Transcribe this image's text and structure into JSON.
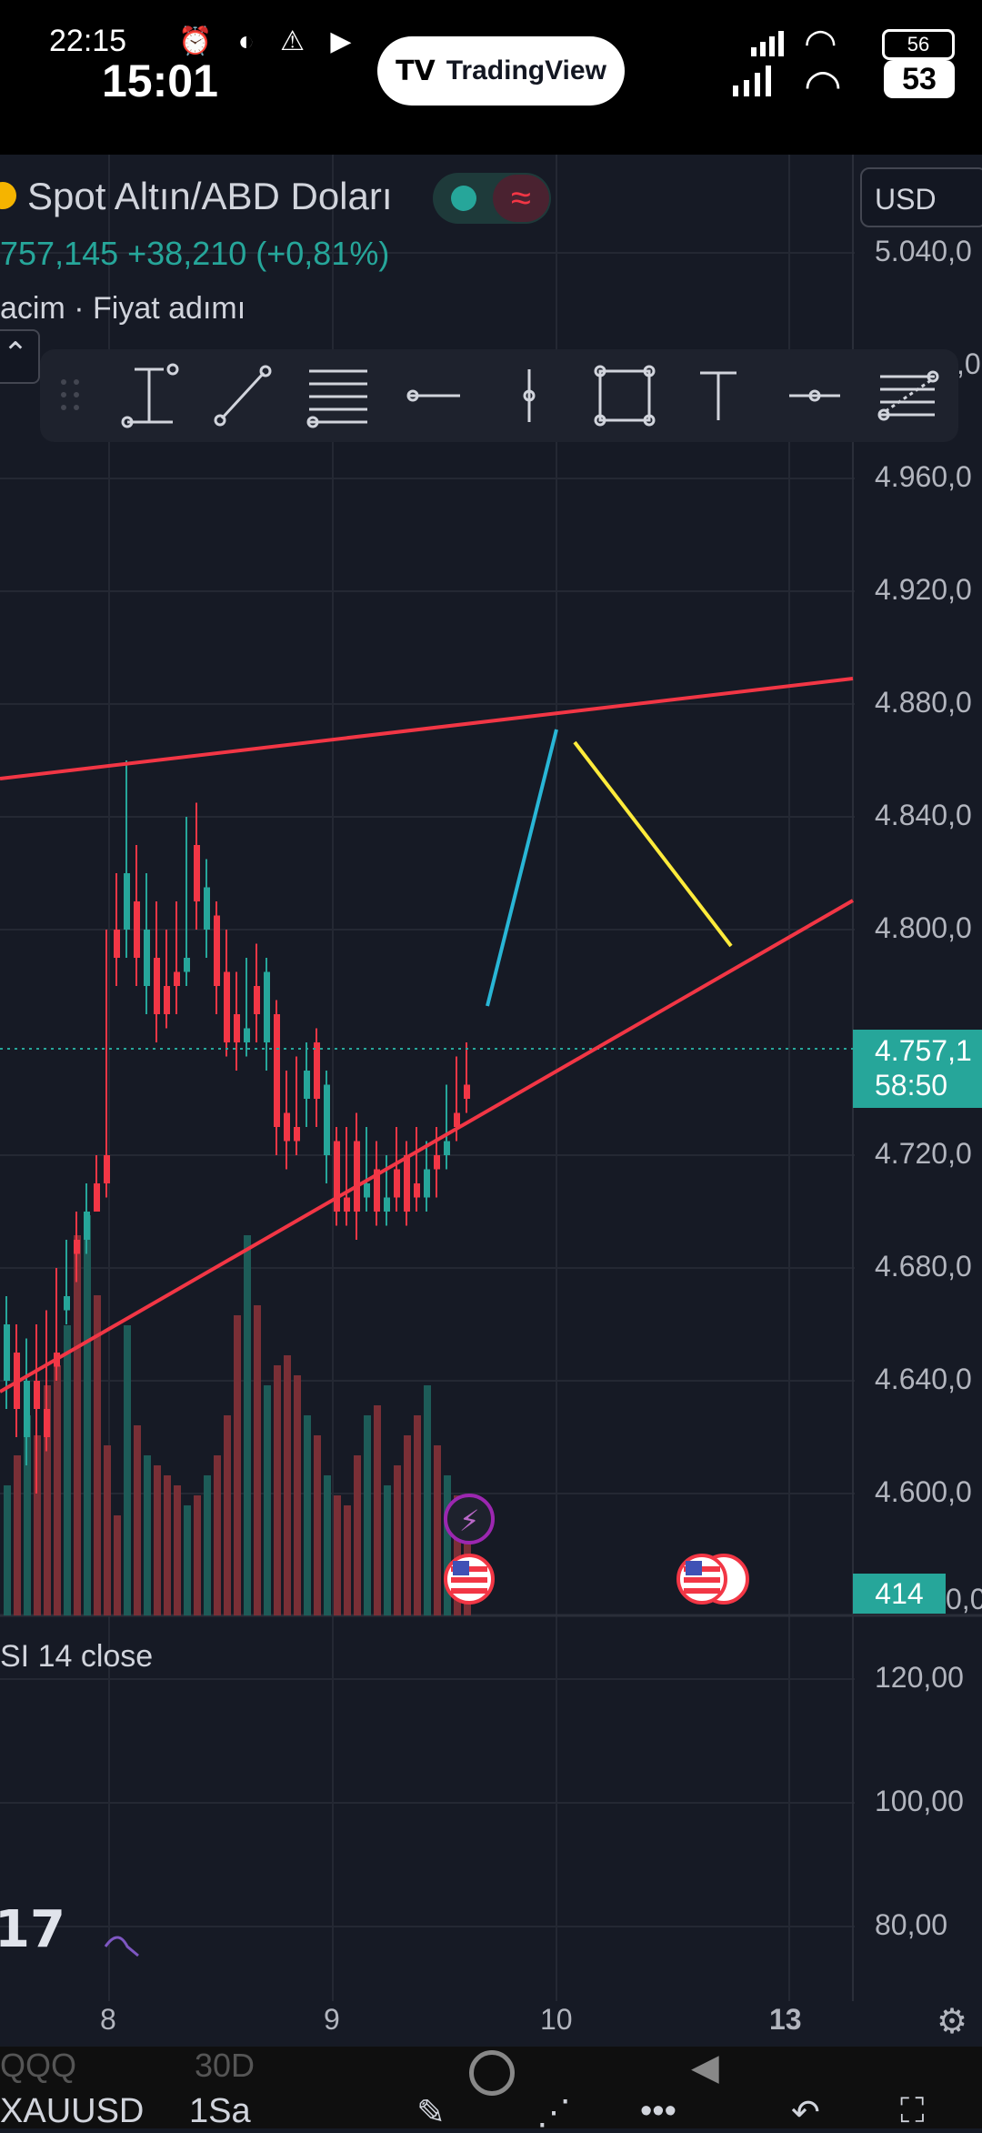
{
  "status_bar": {
    "time_small": "22:15",
    "time_big": "15:01",
    "app_pill": "TradingView",
    "battery_top": "56",
    "battery_bottom": "53"
  },
  "symbol": {
    "title": "Spot Altın/ABD Doları",
    "price_change": "757,145  +38,210 (+0,81%)",
    "subtitle": "acim · Fiyat adımı",
    "currency": "USD"
  },
  "toolbar": {
    "tools": [
      "drag-handle",
      "price-range",
      "trend-line",
      "horizontal-lines",
      "horizontal-ray",
      "vertical-line",
      "rectangle",
      "text",
      "cross-line",
      "fib-retracement"
    ]
  },
  "price_axis": {
    "labels": [
      "5.040,0",
      "4.960,0",
      "4.920,0",
      "4.880,0",
      "4.840,0",
      "4.800,0",
      "4.720,0",
      "4.680,0",
      "4.640,0",
      "4.600,0"
    ],
    "current_price": "4.757,1",
    "countdown": "58:50",
    "volume": "414",
    "partial_label": "0,0",
    "partial_top": ",0"
  },
  "rsi": {
    "label": "SI 14 close",
    "axis": [
      "120,00",
      "100,00",
      "80,00"
    ]
  },
  "time_axis": [
    "8",
    "9",
    "10",
    "13"
  ],
  "bottom": {
    "symbol": "XAUUSD",
    "interval": "1Sa",
    "tabs": [
      "QQQ",
      "30D"
    ]
  },
  "colors": {
    "bg": "#161a25",
    "up": "#26a69a",
    "down": "#f23645",
    "trendline": "#f23645",
    "blue_projection": "#29b6d6",
    "yellow_projection": "#ffeb3b"
  }
}
